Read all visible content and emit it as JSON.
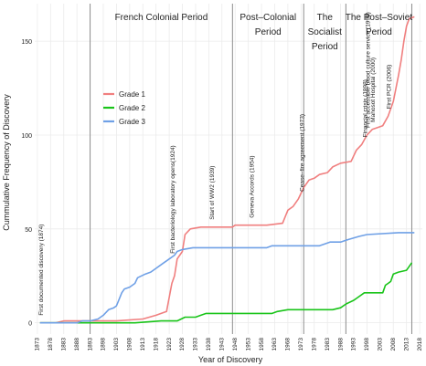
{
  "chart_data": {
    "type": "line",
    "xlabel": "Year of Discovery",
    "ylabel": "Cummulative Frequency of Discovery",
    "xlim": [
      1872,
      2019
    ],
    "ylim": [
      -6,
      170
    ],
    "x_ticks": [
      1873,
      1878,
      1883,
      1888,
      1893,
      1898,
      1903,
      1908,
      1913,
      1918,
      1923,
      1928,
      1933,
      1938,
      1943,
      1948,
      1953,
      1958,
      1963,
      1968,
      1973,
      1978,
      1983,
      1988,
      1993,
      1998,
      2003,
      2008,
      2013,
      2018
    ],
    "y_ticks": [
      0,
      50,
      100,
      150
    ],
    "grid": true,
    "legend_position": "upper-left",
    "period_dividers": [
      1893,
      1947,
      1974,
      1990,
      2015
    ],
    "periods": [
      {
        "label": "French Colonial Period",
        "lines": [
          "French Colonial Period"
        ],
        "start": 1893,
        "end": 1947
      },
      {
        "label": "Post–Colonial Period",
        "lines": [
          "Post–Colonial",
          "Period"
        ],
        "start": 1947,
        "end": 1974
      },
      {
        "label": "The Socialist Period",
        "lines": [
          "The",
          "Socialist",
          "Period"
        ],
        "start": 1974,
        "end": 1990
      },
      {
        "label": "The Post–Soviet Period",
        "lines": [
          "The Post–Soviet",
          "Period"
        ],
        "start": 1990,
        "end": 2015
      }
    ],
    "annotations": [
      {
        "text": "First documented discovery (1874)",
        "x": 1874
      },
      {
        "text": "First bacteriology laboratory opens(1924)",
        "x": 1924
      },
      {
        "text": "Start of WW2 (1939)",
        "x": 1939
      },
      {
        "text": "Geneva Accords (1954)",
        "x": 1954
      },
      {
        "text": "Cease–fire agreement (1973)",
        "x": 1973
      },
      {
        "text": "First accessible blood culture service (1998)",
        "x": 1998
      },
      {
        "text": "Financial crisis (1998)",
        "x": 1997
      },
      {
        "text": "Mahosot Hospital (2000)",
        "x": 2000
      },
      {
        "text": "First PCR (2006)",
        "x": 2006
      }
    ],
    "series": [
      {
        "name": "Grade 1",
        "color": "#f07f7f",
        "points": [
          [
            1874,
            0
          ],
          [
            1880,
            0
          ],
          [
            1883,
            1
          ],
          [
            1900,
            1
          ],
          [
            1903,
            1
          ],
          [
            1913,
            2
          ],
          [
            1918,
            4
          ],
          [
            1922,
            6
          ],
          [
            1924,
            21
          ],
          [
            1925,
            25
          ],
          [
            1926,
            34
          ],
          [
            1928,
            38
          ],
          [
            1929,
            47
          ],
          [
            1931,
            50
          ],
          [
            1935,
            51
          ],
          [
            1947,
            51
          ],
          [
            1948,
            52
          ],
          [
            1960,
            52
          ],
          [
            1966,
            53
          ],
          [
            1968,
            60
          ],
          [
            1970,
            62
          ],
          [
            1972,
            66
          ],
          [
            1974,
            72
          ],
          [
            1976,
            76
          ],
          [
            1978,
            77
          ],
          [
            1980,
            79
          ],
          [
            1983,
            80
          ],
          [
            1985,
            83
          ],
          [
            1988,
            85
          ],
          [
            1992,
            86
          ],
          [
            1994,
            92
          ],
          [
            1996,
            95
          ],
          [
            1998,
            100
          ],
          [
            2000,
            103
          ],
          [
            2002,
            104
          ],
          [
            2004,
            105
          ],
          [
            2006,
            110
          ],
          [
            2008,
            118
          ],
          [
            2010,
            132
          ],
          [
            2011,
            140
          ],
          [
            2012,
            150
          ],
          [
            2013,
            158
          ],
          [
            2014,
            162
          ],
          [
            2016,
            163
          ]
        ]
      },
      {
        "name": "Grade 2",
        "color": "#19c419",
        "points": [
          [
            1874,
            0
          ],
          [
            1910,
            0
          ],
          [
            1920,
            1
          ],
          [
            1926,
            1
          ],
          [
            1929,
            3
          ],
          [
            1933,
            3
          ],
          [
            1935,
            4
          ],
          [
            1937,
            5
          ],
          [
            1945,
            5
          ],
          [
            1962,
            5
          ],
          [
            1964,
            6
          ],
          [
            1968,
            7
          ],
          [
            1985,
            7
          ],
          [
            1988,
            8
          ],
          [
            1990,
            10
          ],
          [
            1993,
            12
          ],
          [
            1995,
            14
          ],
          [
            1997,
            16
          ],
          [
            2000,
            16
          ],
          [
            2004,
            16
          ],
          [
            2005,
            20
          ],
          [
            2006,
            21
          ],
          [
            2007,
            22
          ],
          [
            2008,
            26
          ],
          [
            2010,
            27
          ],
          [
            2013,
            28
          ],
          [
            2015,
            32
          ]
        ]
      },
      {
        "name": "Grade 3",
        "color": "#6fa0e6",
        "points": [
          [
            1874,
            0
          ],
          [
            1888,
            0
          ],
          [
            1890,
            1
          ],
          [
            1893,
            1
          ],
          [
            1896,
            2
          ],
          [
            1898,
            4
          ],
          [
            1900,
            7
          ],
          [
            1902,
            8
          ],
          [
            1903,
            9
          ],
          [
            1905,
            16
          ],
          [
            1906,
            18
          ],
          [
            1908,
            19
          ],
          [
            1910,
            21
          ],
          [
            1911,
            24
          ],
          [
            1914,
            26
          ],
          [
            1916,
            27
          ],
          [
            1918,
            29
          ],
          [
            1921,
            32
          ],
          [
            1922,
            33
          ],
          [
            1925,
            36
          ],
          [
            1926,
            38
          ],
          [
            1928,
            39
          ],
          [
            1932,
            40
          ],
          [
            1945,
            40
          ],
          [
            1960,
            40
          ],
          [
            1962,
            41
          ],
          [
            1980,
            41
          ],
          [
            1982,
            42
          ],
          [
            1984,
            43
          ],
          [
            1988,
            43
          ],
          [
            1990,
            44
          ],
          [
            1995,
            46
          ],
          [
            1998,
            47
          ],
          [
            2010,
            48
          ],
          [
            2016,
            48
          ]
        ]
      }
    ]
  }
}
